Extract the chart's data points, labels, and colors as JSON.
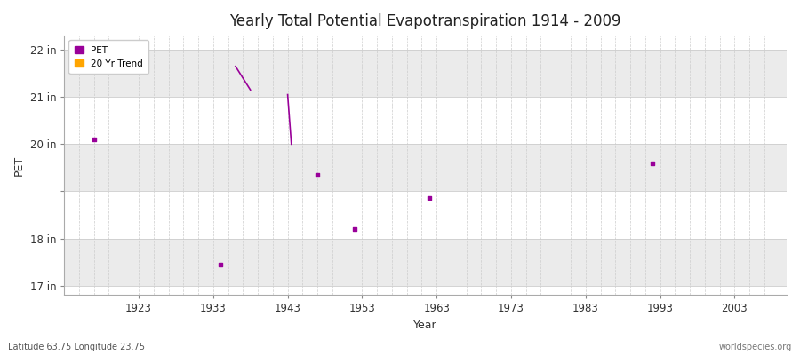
{
  "title": "Yearly Total Potential Evapotranspiration 1914 - 2009",
  "xlabel": "Year",
  "ylabel": "PET",
  "footnote_left": "Latitude 63.75 Longitude 23.75",
  "footnote_right": "worldspecies.org",
  "xlim": [
    1913,
    2010
  ],
  "ylim": [
    16.8,
    22.3
  ],
  "yticks": [
    17,
    18,
    19,
    20,
    21,
    22
  ],
  "ytick_labels": [
    "17 in",
    "18 in",
    "",
    "20 in",
    "21 in",
    "22 in"
  ],
  "xticks": [
    1923,
    1933,
    1943,
    1953,
    1963,
    1973,
    1983,
    1993,
    2003
  ],
  "pet_color": "#990099",
  "trend_color": "#ffa500",
  "bg_light": "#f5f5f5",
  "bg_dark": "#e8e8e8",
  "grid_color": "#c8c8c8",
  "pet_data": [
    [
      1917,
      20.1
    ],
    [
      1934,
      17.45
    ],
    [
      1947,
      19.35
    ],
    [
      1952,
      18.2
    ],
    [
      1962,
      18.85
    ],
    [
      1992,
      19.6
    ]
  ],
  "line_segment_upper": [
    [
      1936,
      21.65
    ],
    [
      1938,
      21.15
    ]
  ],
  "line_segment_lower": [
    [
      1943,
      21.05
    ],
    [
      1943.5,
      20.0
    ]
  ],
  "band_ranges": [
    [
      17,
      18
    ],
    [
      19,
      20
    ],
    [
      21,
      22
    ]
  ],
  "band_color": "#ebebeb"
}
